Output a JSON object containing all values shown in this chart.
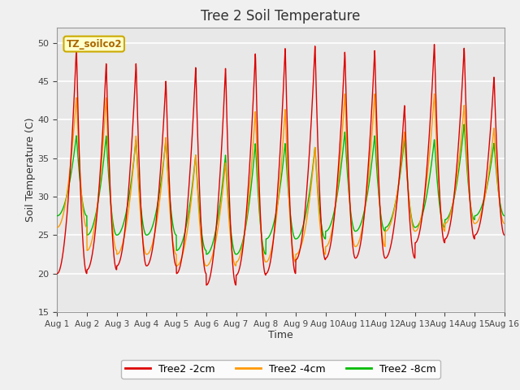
{
  "title": "Tree 2 Soil Temperature",
  "xlabel": "Time",
  "ylabel": "Soil Temperature (C)",
  "ylim": [
    15,
    52
  ],
  "xlim": [
    0,
    15
  ],
  "background_color": "#f0f0f0",
  "plot_bg_color": "#e8e8e8",
  "legend_label": "TZ_soilco2",
  "legend_bg": "#ffffcc",
  "legend_border": "#ccaa00",
  "line_colors": {
    "2cm": "#dd0000",
    "4cm": "#ff9900",
    "8cm": "#00bb00"
  },
  "line_labels": [
    "Tree2 -2cm",
    "Tree2 -4cm",
    "Tree2 -8cm"
  ],
  "xtick_labels": [
    "Aug 1",
    "Aug 2",
    "Aug 3",
    "Aug 4",
    "Aug 5",
    "Aug 6",
    "Aug 7",
    "Aug 8",
    "Aug 9",
    "Aug 10",
    "Aug 11",
    "Aug 12",
    "Aug 13",
    "Aug 14",
    "Aug 15",
    "Aug 16"
  ],
  "ytick_values": [
    15,
    20,
    25,
    30,
    35,
    40,
    45,
    50
  ],
  "n_days": 15,
  "points_per_day": 120,
  "peaks_2cm": [
    49.5,
    47.5,
    47.5,
    45.2,
    47.0,
    46.9,
    48.8,
    49.5,
    49.8,
    49.0,
    49.2,
    42.0,
    50.0,
    49.5,
    45.7
  ],
  "mins_2cm": [
    20.0,
    20.5,
    21.0,
    21.0,
    20.0,
    18.5,
    19.8,
    20.0,
    21.8,
    22.0,
    22.0,
    22.0,
    24.0,
    24.5,
    25.0
  ],
  "peaks_4cm": [
    43.0,
    43.0,
    38.0,
    37.8,
    35.5,
    34.5,
    41.2,
    41.5,
    36.5,
    43.5,
    43.5,
    38.5,
    43.5,
    42.0,
    39.0
  ],
  "mins_4cm": [
    26.0,
    23.0,
    22.5,
    22.5,
    21.0,
    21.0,
    21.5,
    21.5,
    22.5,
    23.5,
    23.5,
    25.5,
    25.5,
    26.5,
    26.5
  ],
  "peaks_8cm": [
    38.0,
    38.0,
    37.5,
    37.5,
    35.5,
    35.5,
    37.0,
    37.0,
    36.5,
    38.5,
    38.0,
    37.5,
    37.5,
    39.5,
    37.0
  ],
  "mins_8cm": [
    27.5,
    25.0,
    25.0,
    25.0,
    23.0,
    22.5,
    22.5,
    24.5,
    24.5,
    25.5,
    25.5,
    26.0,
    26.0,
    27.0,
    27.5
  ]
}
